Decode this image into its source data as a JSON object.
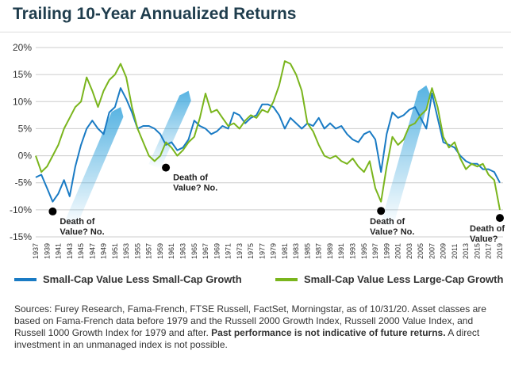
{
  "title": "Trailing 10-Year Annualized Returns",
  "chart_data": {
    "type": "line",
    "title": "Trailing 10-Year Annualized Returns",
    "ylim": [
      -15,
      20
    ],
    "yticks": [
      "20%",
      "15%",
      "10%",
      "5%",
      "0%",
      "-5%",
      "-10%",
      "-15%"
    ],
    "ytick_values": [
      20,
      15,
      10,
      5,
      0,
      -5,
      -10,
      -15
    ],
    "xlim": [
      1937,
      2019
    ],
    "xticks": [
      "1937",
      "1939",
      "1941",
      "1943",
      "1945",
      "1947",
      "1949",
      "1951",
      "1953",
      "1955",
      "1957",
      "1959",
      "1961",
      "1963",
      "1965",
      "1967",
      "1969",
      "1971",
      "1973",
      "1975",
      "1977",
      "1979",
      "1981",
      "1983",
      "1985",
      "1987",
      "1989",
      "1991",
      "1993",
      "1995",
      "1997",
      "1999",
      "2001",
      "2003",
      "2005",
      "2007",
      "2009",
      "2011",
      "2013",
      "2015",
      "2017",
      "2019"
    ],
    "grid": true,
    "legend_placement": "bottom",
    "x_start": 1937,
    "series": [
      {
        "name": "Small-Cap Value Less Small-Cap Growth",
        "color": "#1a7bc4",
        "values": [
          -4,
          -3.5,
          -6,
          -8.5,
          -7,
          -4.5,
          -7.5,
          -2,
          2,
          5,
          6.5,
          5,
          4,
          8,
          9,
          12.5,
          10.5,
          8,
          5,
          5.5,
          5.5,
          5,
          4,
          2,
          2.5,
          1,
          1.5,
          3,
          6.5,
          5.5,
          5,
          4,
          4.5,
          5.5,
          5,
          8,
          7.5,
          6,
          7,
          7.5,
          9.5,
          9.5,
          9,
          7.5,
          5,
          7,
          6,
          5,
          6,
          5.5,
          7,
          5,
          6,
          5,
          5.5,
          4,
          3,
          2.5,
          4,
          4.5,
          3,
          -3,
          4,
          8,
          7,
          7.5,
          8.5,
          9,
          7,
          5,
          11.5,
          7,
          2.5,
          2,
          1.5,
          0,
          -1,
          -1.5,
          -1.5,
          -2.5,
          -2.5,
          -3,
          -5
        ]
      },
      {
        "name": "Small-Cap Value Less Large-Cap Growth",
        "color": "#7ab51d",
        "values": [
          0,
          -3,
          -2,
          0,
          2,
          5,
          7,
          9,
          10,
          14.5,
          12,
          9,
          12,
          14,
          15,
          17,
          14.5,
          9,
          5,
          2.5,
          0,
          -1,
          0,
          2.5,
          1.5,
          0,
          1,
          2.5,
          3.5,
          7,
          11.5,
          8,
          8.5,
          7,
          5.5,
          6,
          5,
          6.5,
          7.5,
          7,
          8.5,
          8,
          10,
          13,
          17.5,
          17,
          15,
          12,
          6,
          4.5,
          2,
          0,
          -0.5,
          0,
          -1,
          -1.5,
          -0.5,
          -2,
          -3,
          -1,
          -6,
          -8.5,
          -2,
          3.5,
          2,
          3,
          5.5,
          6,
          7.5,
          8.5,
          12.5,
          9,
          3.5,
          1.5,
          2.5,
          -0.5,
          -2.5,
          -1.5,
          -2,
          -1.5,
          -3.5,
          -4.5,
          -10
        ]
      }
    ],
    "annotations": [
      {
        "year": 1940,
        "value": -10.3,
        "lines": [
          "Death of",
          "Value? No."
        ]
      },
      {
        "year": 1960,
        "value": -2.2,
        "lines": [
          "Death of",
          "Value? No."
        ]
      },
      {
        "year": 1998,
        "value": -10.2,
        "lines": [
          "Death of",
          "Value? No."
        ]
      },
      {
        "year": 2019,
        "value": -11.5,
        "lines": [
          "Death of",
          "Value?"
        ]
      }
    ],
    "arrows": [
      {
        "from": [
          1943,
          -13
        ],
        "to": [
          1952,
          9
        ]
      },
      {
        "from": [
          1958,
          -2
        ],
        "to": [
          1964,
          12
        ]
      },
      {
        "from": [
          1999,
          -13
        ],
        "to": [
          2006,
          13
        ]
      }
    ]
  },
  "sources": {
    "text": "Sources: Furey Research, Fama-French, FTSE Russell, FactSet, Morningstar, as of 10/31/20. Asset classes are based on Fama-French data before 1979 and the Russell 2000 Growth Index, Russell 2000 Value Index, and Russell 1000 Growth Index for 1979 and after. ",
    "bold": "Past performance is not indicative of future returns.",
    "tail": " A direct investment in an unmanaged index is not possible."
  }
}
